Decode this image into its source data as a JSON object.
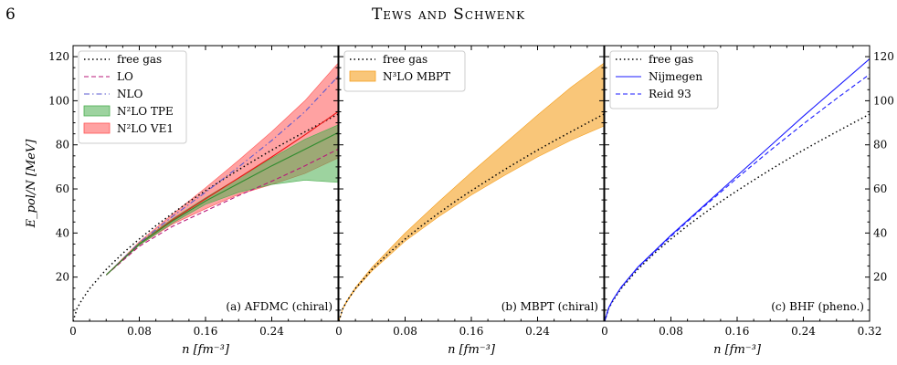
{
  "header": {
    "page_number": "6",
    "title": "Tews and Schwenk"
  },
  "colors": {
    "free": "#000000",
    "lo": "#b8187a",
    "nlo": "#5a5ad0",
    "tpe": "#4caf50",
    "ve1": "#ff5555",
    "mbpt": "#f5a020",
    "nij": "#1a1aff",
    "reid": "#1a1aff",
    "ve1_line": "#ee1111",
    "tpe_line": "#2e8b2e"
  },
  "chart_data": [
    {
      "type": "line",
      "annotation": "(a) AFDMC (chiral)",
      "xlabel": "n [fm⁻³]",
      "ylabel": "E_pol/N [MeV]",
      "xlim": [
        0,
        0.32
      ],
      "ylim": [
        0,
        125
      ],
      "xticks": [
        "0",
        "0.08",
        "0.16",
        "0.24"
      ],
      "yticks": [
        "20",
        "40",
        "60",
        "80",
        "100",
        "120"
      ],
      "legend": "top-left",
      "series": [
        {
          "name": "free gas",
          "style": "dotted",
          "x": [
            0,
            0.005,
            0.01,
            0.02,
            0.04,
            0.06,
            0.08,
            0.1,
            0.12,
            0.14,
            0.16,
            0.18,
            0.2,
            0.22,
            0.24,
            0.26,
            0.28,
            0.3,
            0.32
          ],
          "y": [
            0,
            5.9,
            9.3,
            14.8,
            23.5,
            30.8,
            37.3,
            43.3,
            48.9,
            54.2,
            59.2,
            64.0,
            68.7,
            73.2,
            77.6,
            81.8,
            85.9,
            89.9,
            93.9
          ]
        },
        {
          "name": "LO",
          "style": "dashed",
          "x": [
            0.04,
            0.08,
            0.12,
            0.16,
            0.2,
            0.24,
            0.28,
            0.32
          ],
          "y": [
            21,
            34,
            43,
            50,
            57,
            63.5,
            70.5,
            78
          ]
        },
        {
          "name": "NLO",
          "style": "dashdot",
          "x": [
            0.04,
            0.08,
            0.12,
            0.16,
            0.2,
            0.24,
            0.28,
            0.32
          ],
          "y": [
            21,
            35.5,
            47.5,
            58.5,
            70,
            82,
            95,
            111
          ]
        },
        {
          "name": "",
          "style": "solid",
          "color_key": "ve1_line",
          "x": [
            0.04,
            0.08,
            0.12,
            0.16,
            0.2,
            0.24,
            0.28,
            0.32
          ],
          "y": [
            21,
            35,
            46,
            55.5,
            65,
            74.5,
            84.5,
            95
          ]
        },
        {
          "name": "",
          "style": "solid",
          "color_key": "tpe_line",
          "x": [
            0.04,
            0.08,
            0.12,
            0.16,
            0.2,
            0.24,
            0.28,
            0.32
          ],
          "y": [
            21,
            35,
            45.5,
            54.5,
            62.5,
            70.5,
            78,
            85.5
          ]
        }
      ],
      "bands": [
        {
          "name": "N²LO VE1",
          "x": [
            0.04,
            0.08,
            0.12,
            0.16,
            0.2,
            0.24,
            0.28,
            0.32
          ],
          "lower": [
            21,
            34.5,
            44,
            51,
            57.5,
            62,
            67,
            74
          ],
          "upper": [
            21,
            36,
            48.5,
            60.5,
            73,
            86,
            100,
            117
          ]
        },
        {
          "name": "N²LO TPE",
          "x": [
            0.04,
            0.08,
            0.12,
            0.16,
            0.2,
            0.24,
            0.28,
            0.32
          ],
          "lower": [
            21,
            34.5,
            44.5,
            53,
            58.5,
            62,
            64,
            63
          ],
          "upper": [
            21,
            35.5,
            46.5,
            56,
            65,
            74,
            82.5,
            89
          ]
        }
      ]
    },
    {
      "type": "line",
      "annotation": "(b) MBPT (chiral)",
      "xlabel": "n [fm⁻³]",
      "xlim": [
        0,
        0.32
      ],
      "ylim": [
        0,
        125
      ],
      "xticks": [
        "0",
        "0.08",
        "0.16",
        "0.24"
      ],
      "legend": "top-left",
      "series": [
        {
          "name": "free gas",
          "style": "dotted",
          "x": [
            0,
            0.005,
            0.01,
            0.02,
            0.04,
            0.06,
            0.08,
            0.1,
            0.12,
            0.14,
            0.16,
            0.18,
            0.2,
            0.22,
            0.24,
            0.26,
            0.28,
            0.3,
            0.32
          ],
          "y": [
            0,
            5.9,
            9.3,
            14.8,
            23.5,
            30.8,
            37.3,
            43.3,
            48.9,
            54.2,
            59.2,
            64.0,
            68.7,
            73.2,
            77.6,
            81.8,
            85.9,
            89.9,
            93.9
          ]
        }
      ],
      "bands": [
        {
          "name": "N³LO MBPT",
          "x": [
            0,
            0.005,
            0.01,
            0.02,
            0.04,
            0.08,
            0.12,
            0.16,
            0.2,
            0.24,
            0.28,
            0.32
          ],
          "lower": [
            0,
            5.7,
            9.0,
            14.4,
            22.8,
            36.3,
            47.3,
            57.2,
            66.1,
            74.5,
            82,
            88.5
          ],
          "upper": [
            0,
            6.1,
            9.6,
            15.3,
            24.5,
            40,
            54,
            67.5,
            80.5,
            93.5,
            106,
            117
          ]
        }
      ]
    },
    {
      "type": "line",
      "annotation": "(c) BHF (pheno.)",
      "xlabel": "n [fm⁻³]",
      "xlim": [
        0,
        0.32
      ],
      "ylim": [
        0,
        125
      ],
      "xticks": [
        "0",
        "0.08",
        "0.16",
        "0.24",
        "0.32"
      ],
      "yticks": [
        "20",
        "40",
        "60",
        "80",
        "100",
        "120"
      ],
      "legend": "top-left",
      "series": [
        {
          "name": "free gas",
          "style": "dotted",
          "x": [
            0,
            0.005,
            0.01,
            0.02,
            0.04,
            0.06,
            0.08,
            0.1,
            0.12,
            0.14,
            0.16,
            0.18,
            0.2,
            0.22,
            0.24,
            0.26,
            0.28,
            0.3,
            0.32
          ],
          "y": [
            0,
            5.9,
            9.3,
            14.8,
            23.5,
            30.8,
            37.3,
            43.3,
            48.9,
            54.2,
            59.2,
            64.0,
            68.7,
            73.2,
            77.6,
            81.8,
            85.9,
            89.9,
            93.9
          ]
        },
        {
          "name": "Nijmegen",
          "style": "solid",
          "x": [
            0,
            0.005,
            0.01,
            0.02,
            0.04,
            0.08,
            0.12,
            0.16,
            0.2,
            0.24,
            0.28,
            0.32
          ],
          "y": [
            0,
            6.2,
            9.8,
            15.5,
            24.5,
            39,
            52.5,
            66,
            79.5,
            93,
            106,
            119
          ]
        },
        {
          "name": "Reid 93",
          "style": "dashed",
          "x": [
            0,
            0.005,
            0.01,
            0.02,
            0.04,
            0.08,
            0.12,
            0.16,
            0.2,
            0.24,
            0.28,
            0.32
          ],
          "y": [
            0,
            6.1,
            9.7,
            15.3,
            24.2,
            38.5,
            52,
            65,
            77.5,
            89.5,
            101,
            112
          ]
        }
      ],
      "bands": []
    }
  ]
}
